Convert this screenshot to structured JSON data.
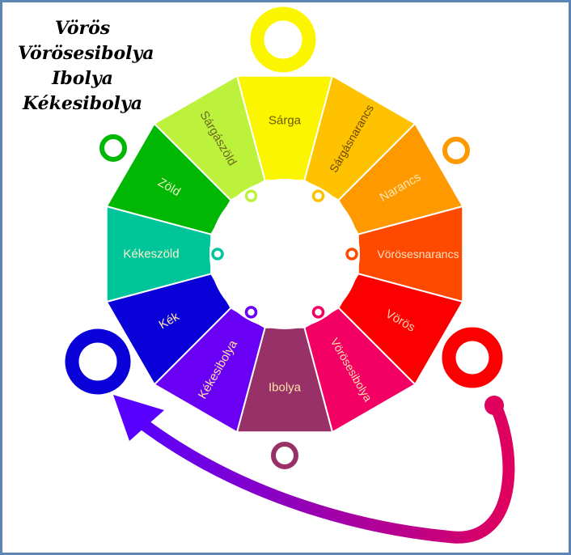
{
  "legend": [
    "Vörös",
    "Vörösesibolya",
    "Ibolya",
    "Kékesibolya"
  ],
  "segments": [
    {
      "label": "Sárga",
      "color": "#fbf600",
      "text_color": "#6b5a00"
    },
    {
      "label": "Sárgásnarancs",
      "color": "#fec200",
      "text_color": "#6b4a00"
    },
    {
      "label": "Narancs",
      "color": "#fe9a00",
      "text_color": "#fde6b0"
    },
    {
      "label": "Vörösesnarancs",
      "color": "#fd4a00",
      "text_color": "#fde0c0"
    },
    {
      "label": "Vörös",
      "color": "#fb0000",
      "text_color": "#fdd0b0"
    },
    {
      "label": "Vörösesibolya",
      "color": "#f20064",
      "text_color": "#fde0b0"
    },
    {
      "label": "Ibolya",
      "color": "#983167",
      "text_color": "#fde2a8"
    },
    {
      "label": "Kékesibolya",
      "color": "#6900f5",
      "text_color": "#fde2a8"
    },
    {
      "label": "Kék",
      "color": "#0a00d8",
      "text_color": "#fde8b0"
    },
    {
      "label": "Kékeszöld",
      "color": "#00c59a",
      "text_color": "#fdf0c8"
    },
    {
      "label": "Zöld",
      "color": "#00b704",
      "text_color": "#e9f5c0"
    },
    {
      "label": "Sárgászöld",
      "color": "#bdf23c",
      "text_color": "#6b6a20"
    }
  ],
  "accent": {
    "arrow_start": "#e0005e",
    "arrow_end": "#5700ff"
  }
}
